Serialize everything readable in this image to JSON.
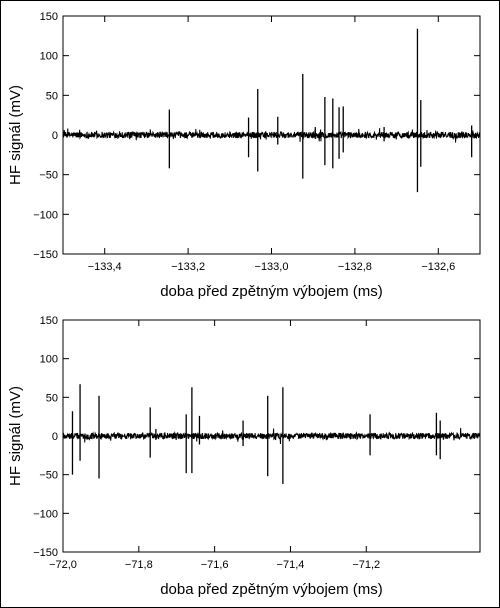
{
  "figure": {
    "border_color": "#000000",
    "background": "#ffffff"
  },
  "chart_data": [
    {
      "type": "line",
      "xlabel": "doba před zpětným výbojem (ms)",
      "ylabel": "HF signál (mV)",
      "xlim": [
        -133.5,
        -132.5
      ],
      "ylim": [
        -150,
        150
      ],
      "x_ticks": [
        -133.4,
        -133.2,
        -133.0,
        -132.8,
        -132.6
      ],
      "x_tick_labels": [
        "−133,4",
        "−133,2",
        "−133,0",
        "−132,8",
        "−132,6"
      ],
      "y_ticks": [
        -150,
        -100,
        -50,
        0,
        50,
        100,
        150
      ],
      "y_tick_labels": [
        "−150",
        "−100",
        "−50",
        "0",
        "50",
        "100",
        "150"
      ],
      "line_color": "#000000",
      "baseline_noise_mV": 4,
      "pulses": [
        {
          "x": -133.245,
          "max": 32,
          "min": -42
        },
        {
          "x": -133.055,
          "max": 22,
          "min": -28
        },
        {
          "x": -133.033,
          "max": 58,
          "min": -46
        },
        {
          "x": -132.985,
          "max": 23,
          "min": -12
        },
        {
          "x": -132.925,
          "max": 77,
          "min": -55
        },
        {
          "x": -132.895,
          "max": 10,
          "min": -5
        },
        {
          "x": -132.872,
          "max": 48,
          "min": -38
        },
        {
          "x": -132.853,
          "max": 46,
          "min": -42
        },
        {
          "x": -132.838,
          "max": 35,
          "min": -30
        },
        {
          "x": -132.828,
          "max": 36,
          "min": -22
        },
        {
          "x": -132.73,
          "max": 10,
          "min": -8
        },
        {
          "x": -132.65,
          "max": 134,
          "min": -72
        },
        {
          "x": -132.642,
          "max": 44,
          "min": -40
        },
        {
          "x": -132.52,
          "max": 12,
          "min": -28
        }
      ]
    },
    {
      "type": "line",
      "xlabel": "doba před zpětným výbojem (ms)",
      "ylabel": "HF signál (mV)",
      "xlim": [
        -72.0,
        -70.9
      ],
      "ylim": [
        -150,
        150
      ],
      "x_ticks": [
        -72.0,
        -71.8,
        -71.6,
        -71.4,
        -71.2
      ],
      "x_tick_labels": [
        "−72,0",
        "−71,8",
        "−71,6",
        "−71,4",
        "−71,2"
      ],
      "y_ticks": [
        -150,
        -100,
        -50,
        0,
        50,
        100,
        150
      ],
      "y_tick_labels": [
        "−150",
        "−100",
        "−50",
        "0",
        "50",
        "100",
        "150"
      ],
      "line_color": "#000000",
      "baseline_noise_mV": 4,
      "pulses": [
        {
          "x": -71.975,
          "max": 32,
          "min": -50
        },
        {
          "x": -71.955,
          "max": 67,
          "min": -32
        },
        {
          "x": -71.905,
          "max": 52,
          "min": -55
        },
        {
          "x": -71.77,
          "max": 37,
          "min": -28
        },
        {
          "x": -71.755,
          "max": 9,
          "min": -5
        },
        {
          "x": -71.675,
          "max": 28,
          "min": -48
        },
        {
          "x": -71.66,
          "max": 63,
          "min": -48
        },
        {
          "x": -71.64,
          "max": 26,
          "min": -11
        },
        {
          "x": -71.525,
          "max": 20,
          "min": -13
        },
        {
          "x": -71.46,
          "max": 52,
          "min": -52
        },
        {
          "x": -71.42,
          "max": 63,
          "min": -62
        },
        {
          "x": -71.19,
          "max": 28,
          "min": -25
        },
        {
          "x": -71.015,
          "max": 30,
          "min": -25
        },
        {
          "x": -71.005,
          "max": 20,
          "min": -30
        }
      ]
    }
  ]
}
